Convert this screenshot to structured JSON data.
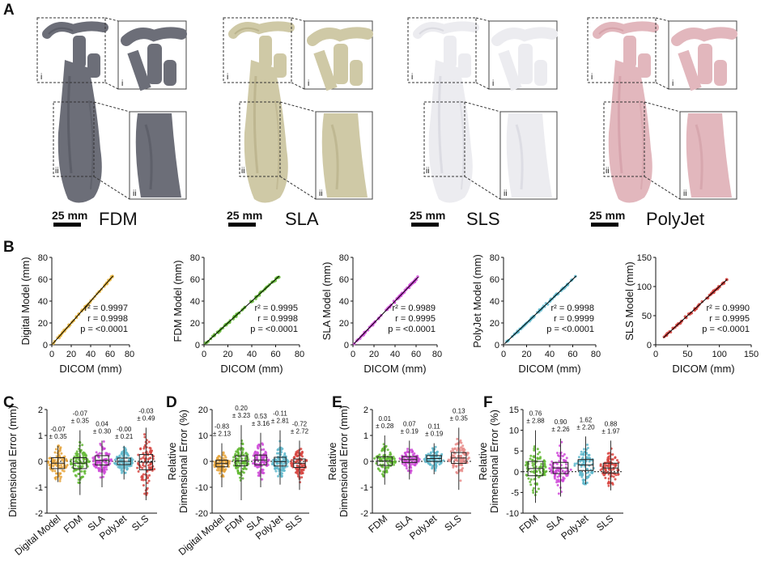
{
  "figure": {
    "panel_letters": [
      "A",
      "B",
      "C",
      "D",
      "E",
      "F"
    ]
  },
  "panel_a": {
    "models": [
      {
        "name": "FDM",
        "scale_label": "25 mm",
        "color": "#6c6e78",
        "inset_labels": [
          "i",
          "ii"
        ]
      },
      {
        "name": "SLA",
        "scale_label": "25 mm",
        "color": "#cfc9a6",
        "inset_labels": [
          "i",
          "ii"
        ]
      },
      {
        "name": "SLS",
        "scale_label": "25 mm",
        "color": "#ececf0",
        "inset_labels": [
          "i",
          "ii"
        ]
      },
      {
        "name": "PolyJet",
        "scale_label": "25 mm",
        "color": "#e2b7bd",
        "inset_labels": [
          "i",
          "ii"
        ]
      }
    ]
  },
  "chart_data": [
    {
      "panel": "B",
      "type": "scatter",
      "title": "",
      "xlabel": "DICOM (mm)",
      "ylabel": "Digital Model (mm)",
      "xlim": [
        0,
        80
      ],
      "ylim": [
        0,
        80
      ],
      "xticks": [
        "0",
        "20",
        "40",
        "60",
        "80"
      ],
      "yticks": [
        "0",
        "20",
        "40",
        "60",
        "80"
      ],
      "color": "#e6b43c",
      "x_range": [
        1,
        63
      ],
      "stats": [
        "r² = 0.9997",
        "r = 0.9998",
        "p = <0.0001"
      ]
    },
    {
      "panel": "B",
      "type": "scatter",
      "title": "",
      "xlabel": "DICOM (mm)",
      "ylabel": "FDM Model (mm)",
      "xlim": [
        0,
        80
      ],
      "ylim": [
        0,
        80
      ],
      "xticks": [
        "0",
        "20",
        "40",
        "60",
        "80"
      ],
      "yticks": [
        "0",
        "20",
        "40",
        "60",
        "80"
      ],
      "color": "#62b833",
      "x_range": [
        1,
        63
      ],
      "stats": [
        "r² = 0.9995",
        "r = 0.9998",
        "p = <0.0001"
      ]
    },
    {
      "panel": "B",
      "type": "scatter",
      "title": "",
      "xlabel": "DICOM (mm)",
      "ylabel": "SLA Model (mm)",
      "xlim": [
        0,
        80
      ],
      "ylim": [
        0,
        80
      ],
      "xticks": [
        "0",
        "20",
        "40",
        "60",
        "80"
      ],
      "yticks": [
        "0",
        "20",
        "40",
        "60",
        "80"
      ],
      "color": "#cf4ad8",
      "x_range": [
        1,
        62
      ],
      "stats": [
        "r² = 0.9989",
        "r = 0.9995",
        "p = <0.0001"
      ]
    },
    {
      "panel": "B",
      "type": "scatter",
      "title": "",
      "xlabel": "DICOM (mm)",
      "ylabel": "PolyJet Model (mm)",
      "xlim": [
        0,
        80
      ],
      "ylim": [
        0,
        80
      ],
      "xticks": [
        "0",
        "20",
        "40",
        "60",
        "80"
      ],
      "yticks": [
        "0",
        "20",
        "40",
        "60",
        "80"
      ],
      "color": "#5fb8cc",
      "x_range": [
        1,
        63
      ],
      "stats": [
        "r² = 0.9998",
        "r = 0.9999",
        "p = <0.0001"
      ]
    },
    {
      "panel": "B",
      "type": "scatter",
      "title": "",
      "xlabel": "DICOM (mm)",
      "ylabel": "SLS Model (mm)",
      "xlim": [
        0,
        150
      ],
      "ylim": [
        0,
        150
      ],
      "xticks": [
        "0",
        "50",
        "100",
        "150"
      ],
      "yticks": [
        "0",
        "50",
        "100",
        "150"
      ],
      "color": "#d64541",
      "x_range": [
        12,
        112
      ],
      "stats": [
        "r² = 0.9990",
        "r = 0.9995",
        "p = <0.0001"
      ]
    },
    {
      "panel": "C",
      "type": "box",
      "ylabel": "Dimensional Error (mm)",
      "ylim": [
        -2,
        2
      ],
      "yticks": [
        "-2",
        "-1",
        "0",
        "1",
        "2"
      ],
      "categories": [
        "Digital Model",
        "FDM",
        "SLA",
        "PolyJet",
        "SLS"
      ],
      "colors": [
        "#e6a43c",
        "#62b833",
        "#cf4ad8",
        "#5fb8cc",
        "#d64541"
      ],
      "means": [
        -0.07,
        -0.07,
        0.04,
        -0.0,
        -0.03
      ],
      "sds": [
        0.35,
        0.35,
        0.3,
        0.21,
        0.49
      ],
      "mean_labels": [
        "-0.07",
        "-0.07",
        "0.04",
        "-0.00",
        "-0.03"
      ],
      "sd_labels": [
        "± 0.35",
        "± 0.35",
        "± 0.30",
        "± 0.21",
        "± 0.49"
      ],
      "ranges": [
        [
          -0.8,
          0.6
        ],
        [
          -1.3,
          1.2
        ],
        [
          -1.0,
          0.8
        ],
        [
          -0.7,
          0.6
        ],
        [
          -1.5,
          1.3
        ]
      ]
    },
    {
      "panel": "D",
      "type": "box",
      "ylabel_lines": [
        "Relative",
        "Dimensional Error (%)"
      ],
      "ylim": [
        -20,
        20
      ],
      "yticks": [
        "-20",
        "-10",
        "0",
        "10",
        "20"
      ],
      "categories": [
        "Digital Model",
        "FDM",
        "SLA",
        "PolyJet",
        "SLS"
      ],
      "colors": [
        "#e6a43c",
        "#62b833",
        "#cf4ad8",
        "#5fb8cc",
        "#d64541"
      ],
      "means": [
        -0.83,
        0.2,
        0.53,
        -0.11,
        -0.72
      ],
      "sds": [
        2.13,
        3.23,
        3.16,
        2.81,
        2.72
      ],
      "mean_labels": [
        "-0.83",
        "0.20",
        "0.53",
        "-0.11",
        "-0.72"
      ],
      "sd_labels": [
        "± 2.13",
        "± 3.23",
        "± 3.16",
        "± 2.81",
        "± 2.72"
      ],
      "ranges": [
        [
          -10,
          7
        ],
        [
          -15,
          14
        ],
        [
          -10,
          11
        ],
        [
          -9,
          12
        ],
        [
          -11,
          8
        ]
      ]
    },
    {
      "panel": "E",
      "type": "box",
      "ylabel_lines": [
        "Relative",
        "Dimensional Error (mm)"
      ],
      "ylim": [
        -2,
        2
      ],
      "yticks": [
        "-2",
        "-1",
        "0",
        "1",
        "2"
      ],
      "categories": [
        "FDM",
        "SLA",
        "PolyJet",
        "SLS"
      ],
      "colors": [
        "#62b833",
        "#cf4ad8",
        "#5fb8cc",
        "#e88b88"
      ],
      "means": [
        0.01,
        0.07,
        0.11,
        0.13
      ],
      "sds": [
        0.28,
        0.19,
        0.19,
        0.35
      ],
      "mean_labels": [
        "0.01",
        "0.07",
        "0.11",
        "0.13"
      ],
      "sd_labels": [
        "± 0.28",
        "± 0.19",
        "± 0.19",
        "± 0.35"
      ],
      "ranges": [
        [
          -0.9,
          1.0
        ],
        [
          -0.7,
          0.8
        ],
        [
          -0.5,
          0.7
        ],
        [
          -1.1,
          1.3
        ]
      ]
    },
    {
      "panel": "F",
      "type": "box",
      "ylabel_lines": [
        "Relative",
        "Dimensional Error (%)"
      ],
      "ylim": [
        -10,
        15
      ],
      "yticks": [
        "-10",
        "-5",
        "0",
        "5",
        "10",
        "15"
      ],
      "categories": [
        "FDM",
        "SLA",
        "PolyJet",
        "SLS"
      ],
      "colors": [
        "#62b833",
        "#cf4ad8",
        "#5fb8cc",
        "#d64541"
      ],
      "means": [
        0.76,
        0.9,
        1.62,
        0.88
      ],
      "sds": [
        2.88,
        2.26,
        2.2,
        1.97
      ],
      "mean_labels": [
        "0.76",
        "0.90",
        "1.62",
        "0.88"
      ],
      "sd_labels": [
        "± 2.88",
        "± 2.26",
        "± 2.20",
        "± 1.97"
      ],
      "ranges": [
        [
          -7.5,
          10
        ],
        [
          -6,
          8
        ],
        [
          -3,
          8.5
        ],
        [
          -4.5,
          7.5
        ]
      ]
    }
  ]
}
